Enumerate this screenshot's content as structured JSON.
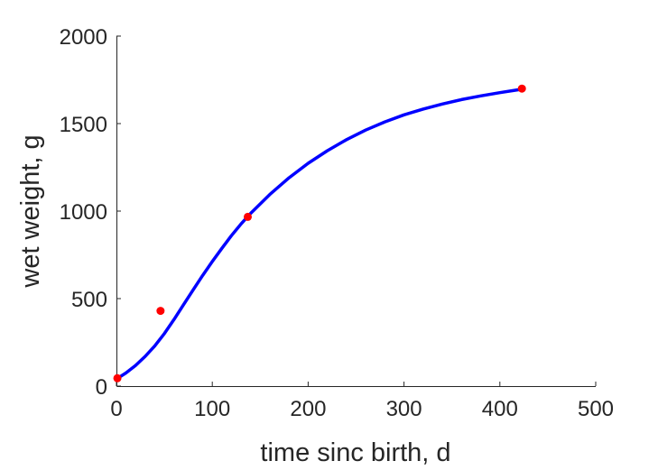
{
  "chart_data": {
    "type": "line",
    "title": "",
    "xlabel": "time sinc birth, d",
    "ylabel": "wet weight, g",
    "xlim": [
      0,
      500
    ],
    "ylim": [
      0,
      2000
    ],
    "xticks": [
      0,
      100,
      200,
      300,
      400,
      500
    ],
    "yticks": [
      0,
      500,
      1000,
      1500,
      2000
    ],
    "xtick_labels": [
      "0",
      "100",
      "200",
      "300",
      "400",
      "500"
    ],
    "ytick_labels": [
      "0",
      "500",
      "1000",
      "1500",
      "2000"
    ],
    "grid": false,
    "series": [
      {
        "kind": "line",
        "color": "#0000ff",
        "x": [
          0,
          10,
          20,
          30,
          40,
          50,
          60,
          70,
          80,
          90,
          100,
          110,
          120,
          130,
          140,
          160,
          180,
          200,
          220,
          240,
          260,
          280,
          300,
          320,
          340,
          360,
          380,
          400,
          420,
          423
        ],
        "y": [
          40,
          75,
          118,
          170,
          230,
          300,
          380,
          465,
          550,
          633,
          712,
          787,
          860,
          927,
          987,
          1095,
          1190,
          1273,
          1345,
          1408,
          1463,
          1510,
          1550,
          1583,
          1612,
          1637,
          1658,
          1677,
          1694,
          1697
        ]
      },
      {
        "kind": "scatter",
        "color": "#ff0000",
        "x": [
          1,
          46,
          137,
          423
        ],
        "y": [
          45,
          430,
          967,
          1700
        ]
      }
    ]
  }
}
